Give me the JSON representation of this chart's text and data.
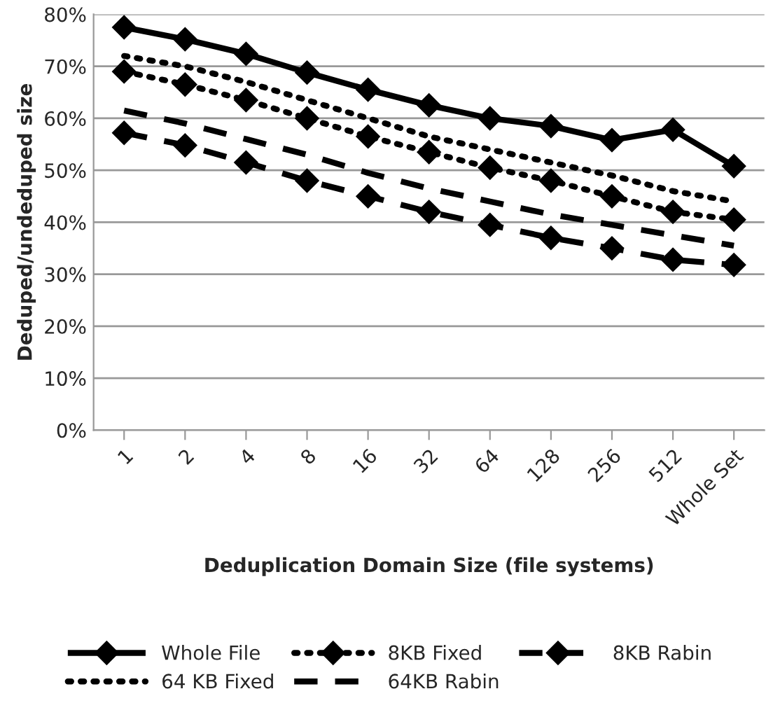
{
  "chart_data": {
    "type": "line",
    "xlabel": "Deduplication Domain Size (file systems)",
    "ylabel": "Deduped/undeduped size",
    "categories": [
      "1",
      "2",
      "4",
      "8",
      "16",
      "32",
      "64",
      "128",
      "256",
      "512",
      "Whole Set"
    ],
    "series": [
      {
        "name": "Whole File",
        "color": "#000000",
        "line_style": "solid",
        "marker": "diamond",
        "values": [
          77.5,
          75.2,
          72.4,
          68.8,
          65.5,
          62.5,
          60,
          58.5,
          55.8,
          57.8,
          50.8
        ]
      },
      {
        "name": "64 KB Fixed",
        "color": "#000000",
        "line_style": "dotted",
        "marker": "none",
        "values": [
          72,
          70,
          67,
          63.5,
          60,
          56.5,
          54,
          51.5,
          49,
          46,
          44
        ]
      },
      {
        "name": "8KB Fixed",
        "color": "#000000",
        "line_style": "dotted",
        "marker": "diamond",
        "values": [
          69,
          66.5,
          63.5,
          60,
          56.5,
          53.5,
          50.5,
          48,
          45,
          42,
          40.5
        ]
      },
      {
        "name": "64KB Rabin",
        "color": "#000000",
        "line_style": "dashed",
        "marker": "none",
        "values": [
          61.5,
          59,
          56,
          53,
          49.5,
          46.5,
          44,
          41.5,
          39.5,
          37.5,
          35.5
        ]
      },
      {
        "name": "8KB Rabin",
        "color": "#000000",
        "line_style": "dashed",
        "marker": "diamond",
        "values": [
          57.2,
          54.8,
          51.5,
          48,
          45,
          42,
          39.5,
          37,
          35,
          32.8,
          31.8
        ]
      }
    ],
    "ylim": [
      0,
      80
    ],
    "yticks": [
      {
        "value": 0,
        "label": "0%"
      },
      {
        "value": 10,
        "label": "10%"
      },
      {
        "value": 20,
        "label": "20%"
      },
      {
        "value": 30,
        "label": "30%"
      },
      {
        "value": 40,
        "label": "40%"
      },
      {
        "value": 50,
        "label": "50%"
      },
      {
        "value": 60,
        "label": "60%"
      },
      {
        "value": 70,
        "label": "70%"
      },
      {
        "value": 80,
        "label": "80%"
      }
    ],
    "grid": "y",
    "legend": "bottom"
  }
}
